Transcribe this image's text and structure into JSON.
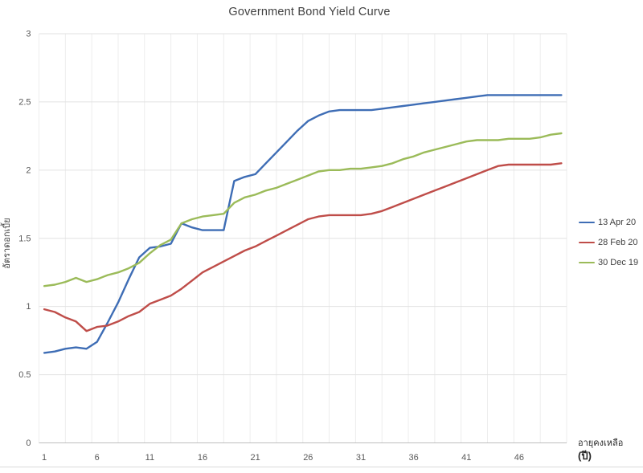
{
  "chart": {
    "y_axis_title": "อัตราดอกเบี้ย",
    "x_axis_title_line1": "อายุคงเหลือ",
    "x_axis_title_line2": "(ปี)"
  },
  "chart_data": {
    "type": "line",
    "title": "Government Bond Yield Curve",
    "xlabel": "อายุคงเหลือ (ปี)",
    "ylabel": "อัตราดอกเบี้ย",
    "xlim": [
      1,
      50
    ],
    "ylim": [
      0,
      3
    ],
    "x_ticks": [
      1,
      6,
      11,
      16,
      21,
      26,
      31,
      36,
      41,
      46
    ],
    "y_ticks": [
      0,
      0.5,
      1,
      1.5,
      2,
      2.5,
      3
    ],
    "y_tick_labels": [
      "0",
      "0.5",
      "1",
      "1.5",
      "2",
      "2.5",
      "3"
    ],
    "grid": true,
    "legend_position": "right",
    "x": [
      1,
      2,
      3,
      4,
      5,
      6,
      7,
      8,
      9,
      10,
      11,
      12,
      13,
      14,
      15,
      16,
      17,
      18,
      19,
      20,
      21,
      22,
      23,
      24,
      25,
      26,
      27,
      28,
      29,
      30,
      31,
      32,
      33,
      34,
      35,
      36,
      37,
      38,
      39,
      40,
      41,
      42,
      43,
      44,
      45,
      46,
      47,
      48,
      49,
      50
    ],
    "series": [
      {
        "name": "13 Apr 20",
        "color": "#3E6DB5",
        "values": [
          0.66,
          0.67,
          0.69,
          0.7,
          0.69,
          0.74,
          0.88,
          1.03,
          1.2,
          1.36,
          1.43,
          1.44,
          1.46,
          1.61,
          1.58,
          1.56,
          1.56,
          1.56,
          1.92,
          1.95,
          1.97,
          2.05,
          2.13,
          2.21,
          2.29,
          2.36,
          2.4,
          2.43,
          2.44,
          2.44,
          2.44,
          2.44,
          2.45,
          2.46,
          2.47,
          2.48,
          2.49,
          2.5,
          2.51,
          2.52,
          2.53,
          2.54,
          2.55,
          2.55,
          2.55,
          2.55,
          2.55,
          2.55,
          2.55,
          2.55
        ]
      },
      {
        "name": "28 Feb 20",
        "color": "#BF4D49",
        "values": [
          0.98,
          0.96,
          0.92,
          0.89,
          0.82,
          0.85,
          0.86,
          0.89,
          0.93,
          0.96,
          1.02,
          1.05,
          1.08,
          1.13,
          1.19,
          1.25,
          1.29,
          1.33,
          1.37,
          1.41,
          1.44,
          1.48,
          1.52,
          1.56,
          1.6,
          1.64,
          1.66,
          1.67,
          1.67,
          1.67,
          1.67,
          1.68,
          1.7,
          1.73,
          1.76,
          1.79,
          1.82,
          1.85,
          1.88,
          1.91,
          1.94,
          1.97,
          2.0,
          2.03,
          2.04,
          2.04,
          2.04,
          2.04,
          2.04,
          2.05
        ]
      },
      {
        "name": "30 Dec 19",
        "color": "#9BBB59",
        "values": [
          1.15,
          1.16,
          1.18,
          1.21,
          1.18,
          1.2,
          1.23,
          1.25,
          1.28,
          1.32,
          1.39,
          1.45,
          1.49,
          1.61,
          1.64,
          1.66,
          1.67,
          1.68,
          1.76,
          1.8,
          1.82,
          1.85,
          1.87,
          1.9,
          1.93,
          1.96,
          1.99,
          2.0,
          2.0,
          2.01,
          2.01,
          2.02,
          2.03,
          2.05,
          2.08,
          2.1,
          2.13,
          2.15,
          2.17,
          2.19,
          2.21,
          2.22,
          2.22,
          2.22,
          2.23,
          2.23,
          2.23,
          2.24,
          2.26,
          2.27
        ]
      }
    ]
  },
  "colors": {
    "grid_h": "#e2e2e2",
    "grid_v": "#ededed",
    "axis": "#bdbdbd",
    "tick_text": "#595959",
    "title_text": "#404040",
    "divider": "#d9d9d9"
  }
}
